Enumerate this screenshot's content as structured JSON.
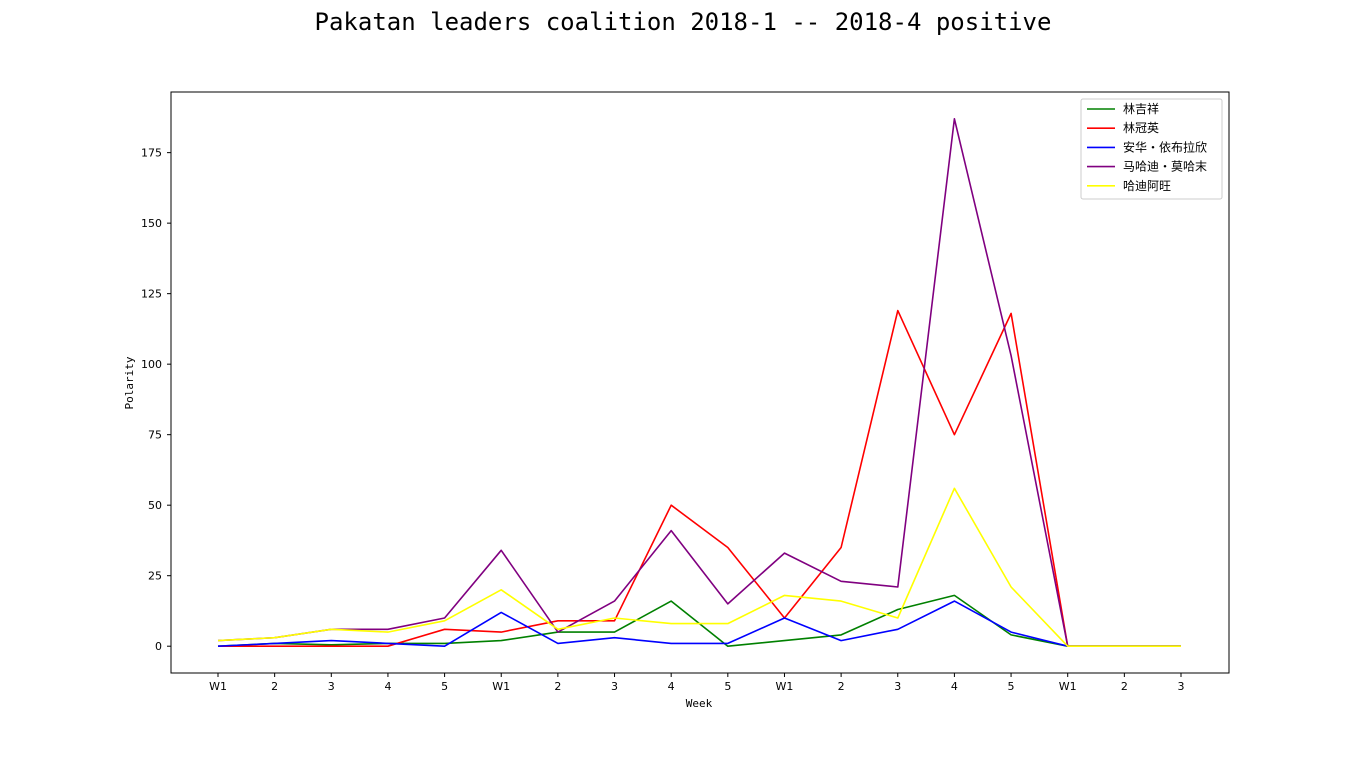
{
  "chart_data": {
    "type": "line",
    "title": "Pakatan leaders coalition 2018-1 -- 2018-4 positive",
    "xlabel": "Week",
    "ylabel": "Polarity",
    "categories": [
      "W1",
      "2",
      "3",
      "4",
      "5",
      "W1",
      "2",
      "3",
      "4",
      "5",
      "W1",
      "2",
      "3",
      "4",
      "5",
      "W1",
      "2",
      "3"
    ],
    "yticks": [
      0,
      25,
      50,
      75,
      100,
      125,
      150,
      175
    ],
    "ylim": [
      -9.5,
      196.5
    ],
    "grid": false,
    "legend_position": "top-right",
    "series": [
      {
        "name": "林吉祥",
        "color": "#008000",
        "values": [
          0,
          1,
          0.5,
          1,
          1,
          2,
          5,
          5,
          16,
          0,
          2,
          4,
          13,
          18,
          4,
          0,
          0,
          0
        ]
      },
      {
        "name": "林冠英",
        "color": "#ff0000",
        "values": [
          0,
          0,
          0,
          0,
          6,
          5,
          9,
          9,
          50,
          35,
          10,
          35,
          119,
          75,
          118,
          0,
          0,
          0
        ]
      },
      {
        "name": "安华・依布拉欣",
        "color": "#0000ff",
        "values": [
          0,
          1,
          2,
          1,
          0,
          12,
          1,
          3,
          1,
          1,
          10,
          2,
          6,
          16,
          5,
          0,
          0,
          0
        ]
      },
      {
        "name": "马哈迪・莫哈末",
        "color": "#800080",
        "values": [
          2,
          3,
          6,
          6,
          10,
          34,
          5,
          16,
          41,
          15,
          33,
          23,
          21,
          187,
          103,
          0,
          0,
          0
        ]
      },
      {
        "name": "哈迪阿旺",
        "color": "#ffff00",
        "values": [
          2,
          3,
          6,
          5,
          9,
          20,
          6,
          10,
          8,
          8,
          18,
          16,
          10,
          56,
          21,
          0,
          0,
          0
        ]
      }
    ]
  }
}
